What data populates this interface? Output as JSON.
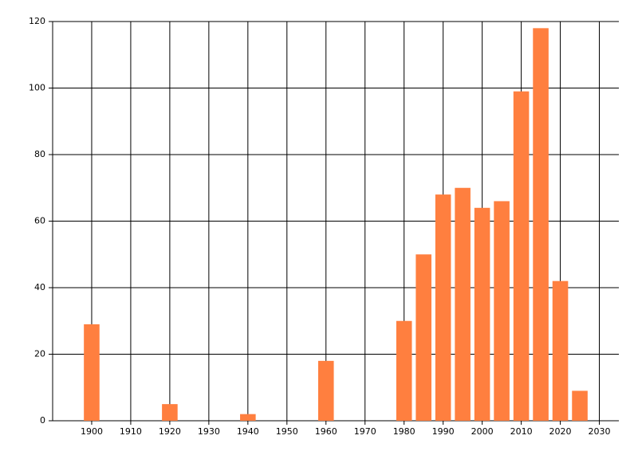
{
  "chart_data": {
    "type": "bar",
    "x": [
      1900,
      1920,
      1940,
      1960,
      1980,
      1985,
      1990,
      1995,
      2000,
      2005,
      2010,
      2015,
      2020,
      2025
    ],
    "values": [
      29,
      5,
      2,
      18,
      30,
      50,
      68,
      70,
      64,
      66,
      99,
      118,
      42,
      9
    ],
    "color": "#ff7f3f",
    "xlim": [
      1890,
      2035
    ],
    "xticks": [
      1900,
      1910,
      1920,
      1930,
      1940,
      1950,
      1960,
      1970,
      1980,
      1990,
      2000,
      2010,
      2020,
      2030
    ],
    "ylim": [
      0,
      120
    ],
    "yticks": [
      0,
      20,
      40,
      60,
      80,
      100,
      120
    ],
    "grid": true
  }
}
